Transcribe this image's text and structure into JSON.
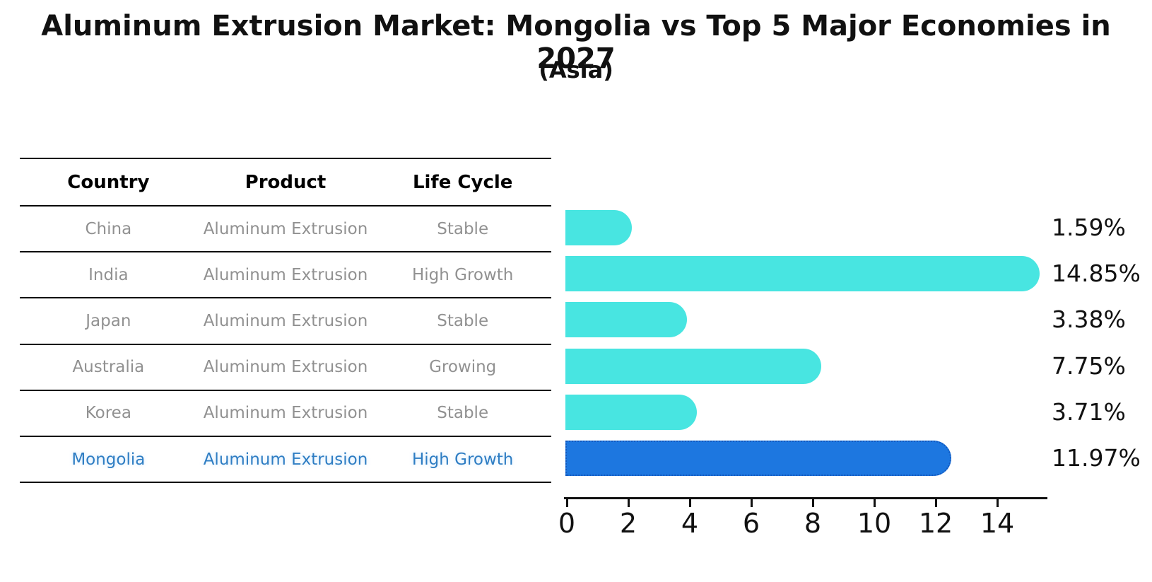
{
  "title": "Aluminum Extrusion Market: Mongolia vs Top 5 Major Economies in 2027",
  "subtitle": "(Asia)",
  "colors": {
    "bar": "#48E5E1",
    "highlight_bar": "#1D77E0",
    "highlight_border": "#1258BE",
    "highlight_text": "#2E7DC3",
    "row_text": "#919191"
  },
  "table": {
    "headers": [
      "Country",
      "Product",
      "Life Cycle"
    ],
    "rows": [
      {
        "country": "China",
        "product": "Aluminum Extrusion",
        "life_cycle": "Stable",
        "highlight": false
      },
      {
        "country": "India",
        "product": "Aluminum Extrusion",
        "life_cycle": "High Growth",
        "highlight": false
      },
      {
        "country": "Japan",
        "product": "Aluminum Extrusion",
        "life_cycle": "Stable",
        "highlight": false
      },
      {
        "country": "Australia",
        "product": "Aluminum Extrusion",
        "life_cycle": "Growing",
        "highlight": false
      },
      {
        "country": "Korea",
        "product": "Aluminum Extrusion",
        "life_cycle": "Stable",
        "highlight": false
      },
      {
        "country": "Mongolia",
        "product": "Aluminum Extrusion",
        "life_cycle": "High Growth",
        "highlight": true
      }
    ]
  },
  "chart_data": {
    "type": "bar",
    "orientation": "horizontal",
    "title": "Aluminum Extrusion Market: Mongolia vs Top 5 Major Economies in 2027",
    "subtitle": "(Asia)",
    "categories": [
      "China",
      "India",
      "Japan",
      "Australia",
      "Korea",
      "Mongolia"
    ],
    "values": [
      1.59,
      14.85,
      3.38,
      7.75,
      3.71,
      11.97
    ],
    "value_labels": [
      "1.59%",
      "14.85%",
      "3.38%",
      "7.75%",
      "3.71%",
      "11.97%"
    ],
    "highlight_category": "Mongolia",
    "highlight_index": 5,
    "x_ticks": [
      "0",
      "2",
      "4",
      "6",
      "8",
      "10",
      "12",
      "14"
    ],
    "x_tick_values": [
      0,
      2,
      4,
      6,
      8,
      10,
      12,
      14
    ],
    "xlim": [
      0,
      15.7
    ],
    "grid": false,
    "legend": "none"
  }
}
